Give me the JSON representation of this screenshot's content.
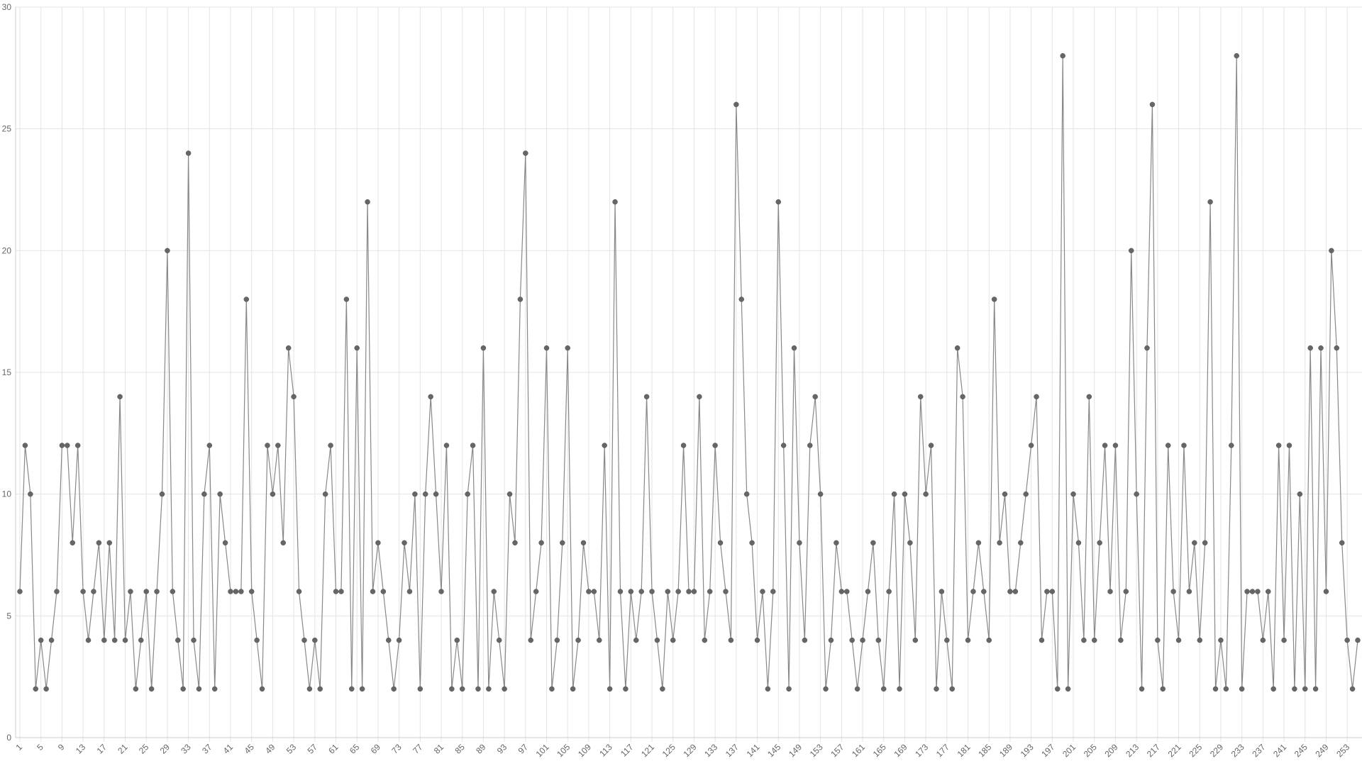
{
  "chart_data": {
    "type": "line",
    "color": "#666666",
    "grid": true,
    "ylim": [
      0,
      30
    ],
    "yticks": [
      0,
      5,
      10,
      15,
      20,
      25,
      30
    ],
    "categories": [
      1,
      null,
      null,
      null,
      5,
      null,
      null,
      null,
      9,
      null,
      null,
      null,
      13,
      null,
      null,
      null,
      17,
      null,
      null,
      null,
      21,
      null,
      null,
      null,
      25,
      null,
      null,
      null,
      29,
      null,
      null,
      null,
      33,
      null,
      null,
      null,
      37,
      null,
      null,
      null,
      41,
      null,
      null,
      null,
      45,
      null,
      null,
      null,
      49,
      null,
      null,
      null,
      53,
      null,
      null,
      null,
      57,
      null,
      null,
      null,
      61,
      null,
      null,
      null,
      65,
      null,
      null,
      null,
      69,
      null,
      null,
      null,
      73,
      null,
      null,
      null,
      77,
      null,
      null,
      null,
      81,
      null,
      null,
      null,
      85,
      null,
      null,
      null,
      89,
      null,
      null,
      null,
      93,
      null,
      null,
      null,
      97,
      null,
      null,
      null,
      101,
      null,
      null,
      null,
      105,
      null,
      null,
      null,
      109,
      null,
      null,
      null,
      113,
      null,
      null,
      null,
      117,
      null,
      null,
      null,
      121,
      null,
      null,
      null,
      125,
      null,
      null,
      null,
      129,
      null,
      null,
      null,
      133,
      null,
      null,
      null,
      137,
      null,
      null,
      null,
      141,
      null,
      null,
      null,
      145,
      null,
      null,
      null,
      149,
      null,
      null,
      null,
      153,
      null,
      null,
      null,
      157,
      null,
      null,
      null,
      161,
      null,
      null,
      null,
      165,
      null,
      null,
      null,
      169,
      null,
      null,
      null,
      173,
      null,
      null,
      null,
      177,
      null,
      null,
      null,
      181,
      null,
      null,
      null,
      185,
      null,
      null,
      null,
      189,
      null,
      null,
      null,
      193,
      null,
      null,
      null,
      197,
      null,
      null,
      null,
      201,
      null,
      null,
      null,
      205,
      null,
      null,
      null,
      209,
      null,
      null,
      null,
      213,
      null,
      null,
      null,
      217,
      null,
      null,
      null,
      221,
      null,
      null,
      null,
      225,
      null,
      null,
      null,
      229,
      null,
      null,
      null,
      233,
      null,
      null,
      null,
      237,
      null,
      null,
      null,
      241,
      null,
      null,
      null,
      245,
      null,
      null,
      null,
      249,
      null,
      null,
      null,
      253,
      null,
      null
    ],
    "values": [
      6,
      12,
      10,
      2,
      4,
      2,
      4,
      6,
      12,
      12,
      8,
      12,
      6,
      4,
      6,
      8,
      4,
      8,
      4,
      14,
      4,
      6,
      2,
      4,
      6,
      2,
      6,
      10,
      20,
      6,
      4,
      2,
      24,
      4,
      2,
      10,
      12,
      2,
      10,
      8,
      6,
      6,
      6,
      18,
      6,
      4,
      2,
      12,
      10,
      12,
      8,
      16,
      14,
      6,
      4,
      2,
      4,
      2,
      10,
      12,
      6,
      6,
      18,
      2,
      16,
      2,
      22,
      6,
      8,
      6,
      4,
      2,
      4,
      8,
      6,
      10,
      2,
      10,
      14,
      10,
      6,
      12,
      2,
      4,
      2,
      10,
      12,
      2,
      16,
      2,
      6,
      4,
      2,
      10,
      8,
      18,
      24,
      4,
      6,
      8,
      16,
      2,
      4,
      8,
      16,
      2,
      4,
      8,
      6,
      6,
      4,
      12,
      2,
      22,
      6,
      2,
      6,
      4,
      6,
      14,
      6,
      4,
      2,
      6,
      4,
      6,
      12,
      6,
      6,
      14,
      4,
      6,
      12,
      8,
      6,
      4,
      26,
      18,
      10,
      8,
      4,
      6,
      2,
      6,
      22,
      12,
      2,
      16,
      8,
      4,
      12,
      14,
      10,
      2,
      4,
      8,
      6,
      6,
      4,
      2,
      4,
      6,
      8,
      4,
      2,
      6,
      10,
      2,
      10,
      8,
      4,
      14,
      10,
      12,
      2,
      6,
      4,
      2,
      16,
      14,
      4,
      6,
      8,
      6,
      4,
      18,
      8,
      10,
      6,
      6,
      8,
      10,
      12,
      14,
      4,
      6,
      6,
      2,
      28,
      2,
      10,
      8,
      4,
      14,
      4,
      8,
      12,
      6,
      12,
      4,
      6,
      20,
      10,
      2,
      16,
      26,
      4,
      2,
      12,
      6,
      4,
      12,
      6,
      8,
      4,
      8,
      22,
      2,
      4,
      2,
      12,
      28,
      2,
      6,
      6,
      6,
      4,
      6,
      2,
      12,
      4,
      12,
      2,
      10,
      2,
      16,
      2,
      16,
      6,
      20,
      16,
      8,
      4,
      2,
      4
    ]
  }
}
